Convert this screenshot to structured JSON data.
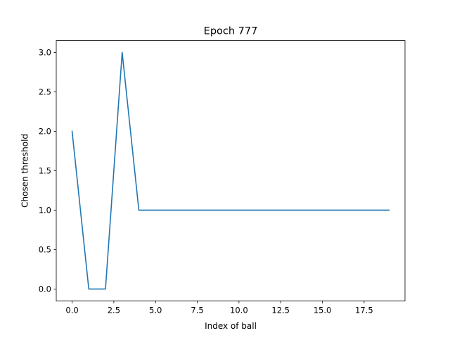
{
  "chart_data": {
    "type": "line",
    "title": "Epoch 777",
    "xlabel": "Index of ball",
    "ylabel": "Chosen threshold",
    "xlim": [
      -0.95,
      19.95
    ],
    "ylim": [
      -0.15,
      3.15
    ],
    "xticks": [
      0.0,
      2.5,
      5.0,
      7.5,
      10.0,
      12.5,
      15.0,
      17.5
    ],
    "xtick_labels": [
      "0.0",
      "2.5",
      "5.0",
      "7.5",
      "10.0",
      "12.5",
      "15.0",
      "17.5"
    ],
    "yticks": [
      0.0,
      0.5,
      1.0,
      1.5,
      2.0,
      2.5,
      3.0
    ],
    "ytick_labels": [
      "0.0",
      "0.5",
      "1.0",
      "1.5",
      "2.0",
      "2.5",
      "3.0"
    ],
    "grid": false,
    "series": [
      {
        "color": "#1f77b4",
        "x": [
          0,
          1,
          2,
          3,
          4,
          5,
          6,
          7,
          8,
          9,
          10,
          11,
          12,
          13,
          14,
          15,
          16,
          17,
          18,
          19
        ],
        "y": [
          2,
          0,
          0,
          3,
          1,
          1,
          1,
          1,
          1,
          1,
          1,
          1,
          1,
          1,
          1,
          1,
          1,
          1,
          1,
          1
        ]
      }
    ]
  }
}
